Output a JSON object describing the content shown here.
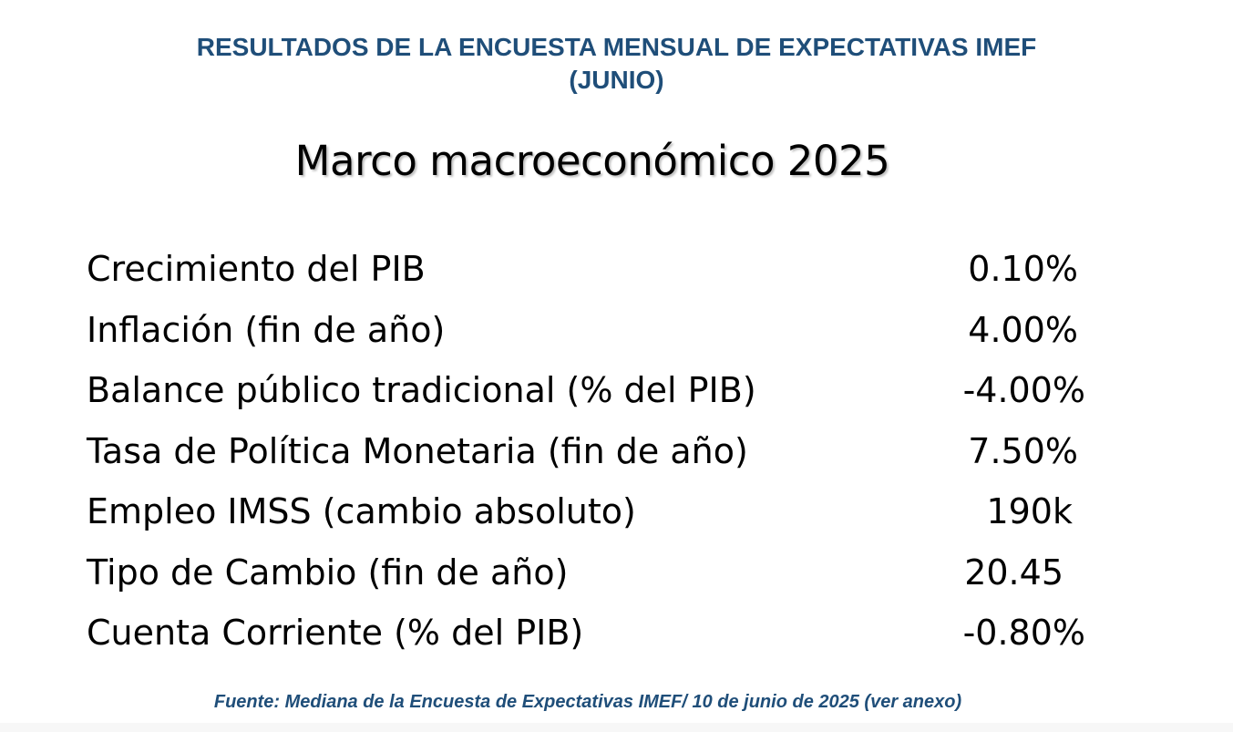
{
  "header": {
    "line1": "RESULTADOS DE LA ENCUESTA MENSUAL DE EXPECTATIVAS IMEF",
    "line2": "(JUNIO)"
  },
  "title": "Marco macroeconómico 2025",
  "indicators": [
    {
      "label": "Crecimiento del PIB",
      "value": "0.10%"
    },
    {
      "label": "Inflación (fin de año)",
      "value": "4.00%"
    },
    {
      "label": "Balance público tradicional (% del PIB)",
      "value": "-4.00%"
    },
    {
      "label": "Tasa de Política Monetaria (fin de año)",
      "value": "7.50%"
    },
    {
      "label": "Empleo IMSS (cambio absoluto)",
      "value": "190k"
    },
    {
      "label": "Tipo de Cambio (fin de año)",
      "value": "20.45"
    },
    {
      "label": "Cuenta Corriente (% del PIB)",
      "value": "-0.80%"
    }
  ],
  "source": "Fuente: Mediana de la Encuesta de Expectativas IMEF/ 10 de junio de 2025 (ver anexo)",
  "colors": {
    "header": "#1f4e79",
    "text": "#000000",
    "background": "#ffffff"
  }
}
